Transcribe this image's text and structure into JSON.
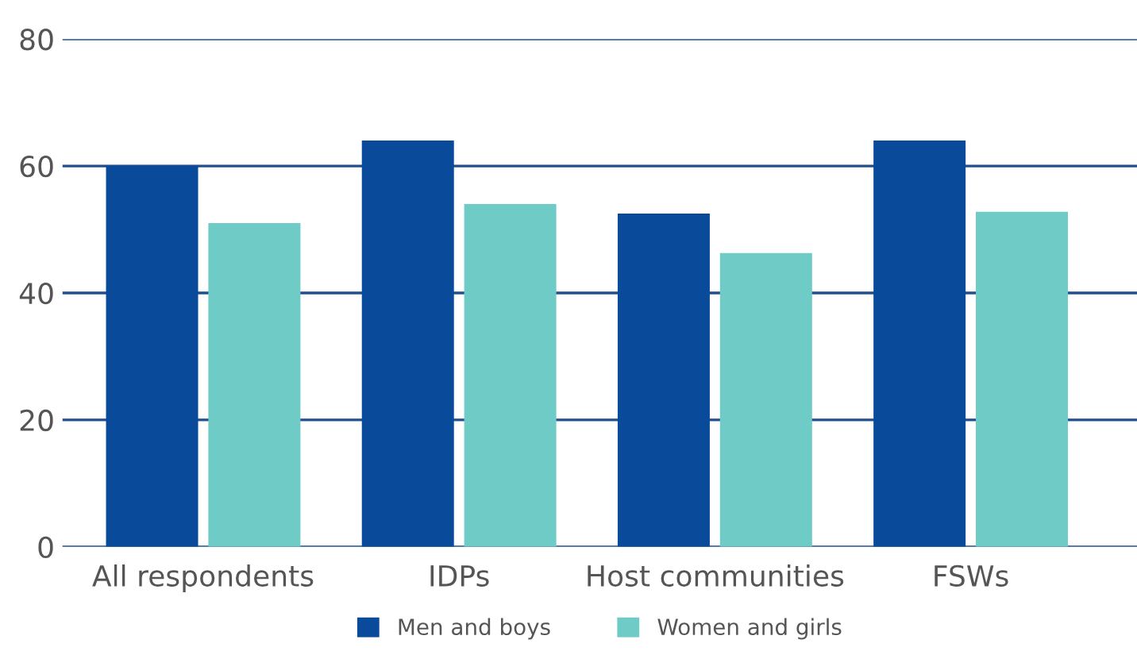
{
  "chart_data": {
    "type": "bar",
    "categories": [
      "All respondents",
      "IDPs",
      "Host communities",
      "FSWs"
    ],
    "series": [
      {
        "name": "Men and boys",
        "color": "#0a4a9a",
        "values": [
          60,
          64,
          52.5,
          64
        ]
      },
      {
        "name": "Women and girls",
        "color": "#6ecbc6",
        "values": [
          51,
          54,
          46.3,
          52.8
        ]
      }
    ],
    "ylim": [
      0,
      80
    ],
    "yticks": [
      0,
      20,
      40,
      60,
      80
    ],
    "grid": "y",
    "legend": "bottom"
  }
}
